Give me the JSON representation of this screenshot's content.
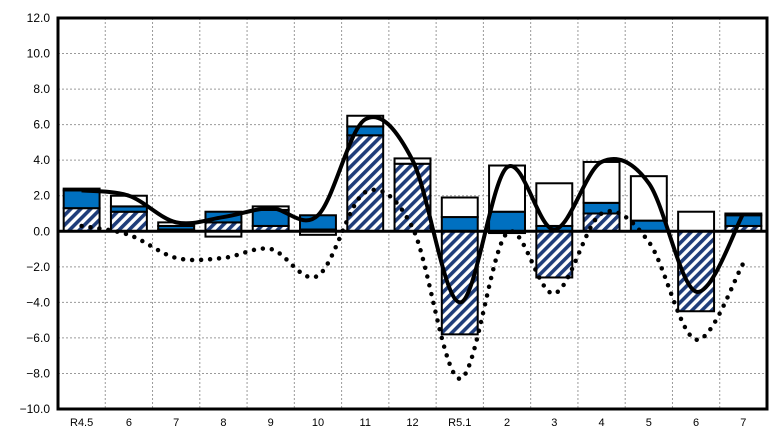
{
  "chart_data": {
    "type": "bar",
    "title": "",
    "xlabel": "",
    "ylabel": "",
    "categories": [
      "R4.5",
      "6",
      "7",
      "8",
      "9",
      "10",
      "11",
      "12",
      "R5.1",
      "2",
      "3",
      "4",
      "5",
      "6",
      "7"
    ],
    "yticks": [
      "12.0",
      "10.0",
      "8.0",
      "6.0",
      "4.0",
      "2.0",
      "0.0",
      "−2.0",
      "−4.0",
      "−6.0",
      "−8.0",
      "−10.0"
    ],
    "ylim": [
      -10,
      12
    ],
    "grid": true,
    "legend": "none",
    "series": [
      {
        "style": "hatched-bar",
        "values": [
          1.3,
          1.1,
          0.1,
          0.5,
          0.3,
          0.1,
          5.4,
          3.8,
          -5.8,
          -0.1,
          -2.6,
          1.0,
          0.0,
          -4.5,
          0.3
        ]
      },
      {
        "style": "blue-bar",
        "values": [
          1.0,
          0.3,
          0.2,
          0.6,
          0.9,
          0.8,
          0.5,
          0.0,
          0.8,
          1.1,
          0.3,
          0.6,
          0.6,
          0.0,
          0.6
        ]
      },
      {
        "style": "white-bar",
        "values": [
          0.1,
          0.6,
          0.2,
          -0.3,
          0.2,
          -0.2,
          0.6,
          0.3,
          1.1,
          2.6,
          2.4,
          2.3,
          2.5,
          1.1,
          0.1
        ]
      },
      {
        "style": "solid-line",
        "values": [
          2.3,
          2.0,
          0.5,
          0.8,
          1.3,
          0.9,
          6.3,
          4.0,
          -4.0,
          3.6,
          0.1,
          3.9,
          2.7,
          -3.4,
          1.0
        ]
      },
      {
        "style": "dotted-line",
        "values": [
          0.3,
          -0.2,
          -1.5,
          -1.5,
          -1.0,
          -2.5,
          2.2,
          0.2,
          -8.3,
          -0.1,
          -3.5,
          1.0,
          -0.6,
          -6.1,
          -1.8
        ]
      }
    ],
    "colors": {
      "blue": "#0070c0",
      "hatch": "#1f3d7a",
      "line": "#000000",
      "grid": "#9a9a9a"
    }
  }
}
